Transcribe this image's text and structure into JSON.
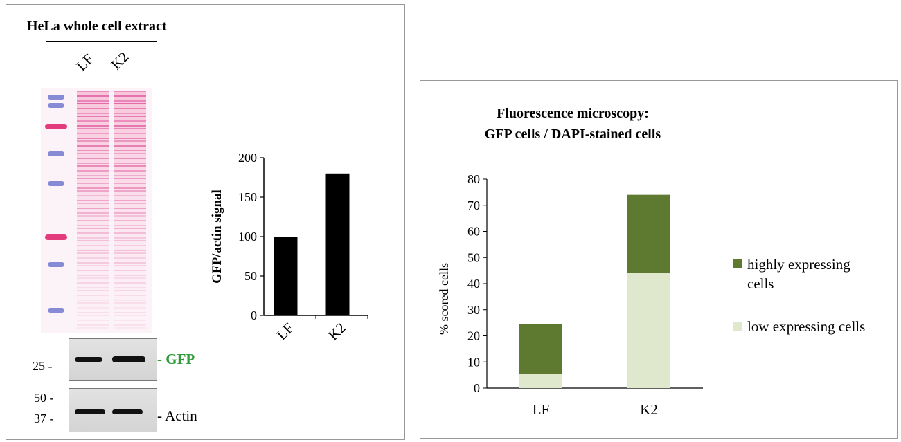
{
  "western": {
    "title": "HeLa whole cell extract",
    "lanes": [
      "LF",
      "K2"
    ],
    "gfp_marker": "25 -",
    "gfp_label": "- GFP",
    "gfp_color": "#2e9a3a",
    "actin_marker_top": "50 -",
    "actin_marker_bottom": "37 -",
    "actin_label": "- Actin",
    "stain_color": "#e0559a",
    "ladder_colors": [
      "#7a7fd0",
      "#e0286e"
    ]
  },
  "chart_data": [
    {
      "type": "bar",
      "title": "",
      "xlabel": "",
      "ylabel": "GFP/actin signal",
      "categories": [
        "LF",
        "K2"
      ],
      "values": [
        100,
        180
      ],
      "ylim": [
        0,
        200
      ],
      "yticks": [
        "0",
        "50",
        "100",
        "150",
        "200"
      ],
      "color": "#000000",
      "grid": false
    },
    {
      "type": "bar",
      "stacked": true,
      "title": "Fluorescence microscopy:",
      "subtitle": "GFP cells / DAPI-stained cells",
      "xlabel": "",
      "ylabel": "% scored  cells",
      "categories": [
        "LF",
        "K2"
      ],
      "ylim": [
        0,
        80
      ],
      "yticks": [
        "0",
        "10",
        "20",
        "30",
        "40",
        "50",
        "60",
        "70",
        "80"
      ],
      "series": [
        {
          "name": "low expressing cells",
          "values": [
            5.5,
            44
          ],
          "color": "#dfe8cc"
        },
        {
          "name": "highly expressing cells",
          "values": [
            19,
            30
          ],
          "color": "#5e7a31"
        }
      ],
      "legend": {
        "position": "right",
        "entries": [
          {
            "line1": "highly expressing",
            "line2": "cells",
            "color": "#5e7a31"
          },
          {
            "line1": "low expressing cells",
            "line2": "",
            "color": "#dfe8cc"
          }
        ]
      },
      "grid": false
    }
  ]
}
